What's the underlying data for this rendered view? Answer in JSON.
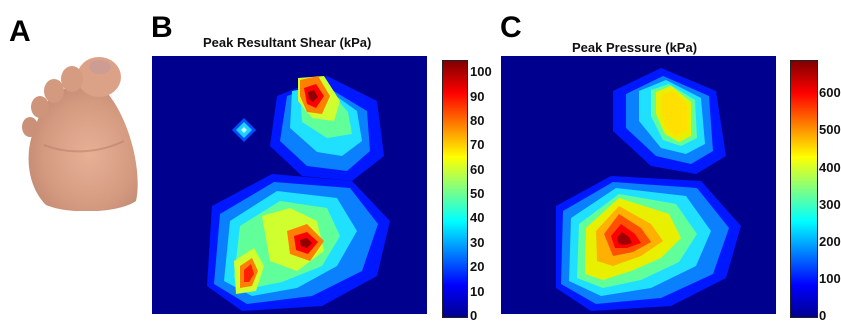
{
  "panels": {
    "a": {
      "letter": "A"
    },
    "b": {
      "letter": "B"
    },
    "c": {
      "letter": "C"
    }
  },
  "colors": {
    "background": "#00008f",
    "colormap": [
      "#00008f",
      "#0000ff",
      "#0080ff",
      "#00ffff",
      "#80ff80",
      "#ffff00",
      "#ff8000",
      "#ff0000",
      "#800000"
    ]
  },
  "chart_data": [
    {
      "type": "heatmap",
      "title": "Peak Resultant Shear (kPa)",
      "colorbar": {
        "min": 0,
        "max": 105,
        "ticks": [
          0,
          10,
          20,
          30,
          40,
          50,
          60,
          70,
          80,
          90,
          100
        ]
      },
      "hotspots": [
        {
          "region": "hallux",
          "peak": 100
        },
        {
          "region": "second toe",
          "peak": 38
        },
        {
          "region": "medial forefoot",
          "peak": 60
        },
        {
          "region": "central forefoot",
          "peak": 92
        },
        {
          "region": "lateral forefoot",
          "peak": 78
        }
      ]
    },
    {
      "type": "heatmap",
      "title": "Peak Pressure (kPa)",
      "colorbar": {
        "min": 0,
        "max": 690,
        "ticks": [
          0,
          100,
          200,
          300,
          400,
          500,
          600
        ]
      },
      "hotspots": [
        {
          "region": "hallux",
          "peak": 420
        },
        {
          "region": "central forefoot",
          "peak": 680
        }
      ]
    }
  ]
}
